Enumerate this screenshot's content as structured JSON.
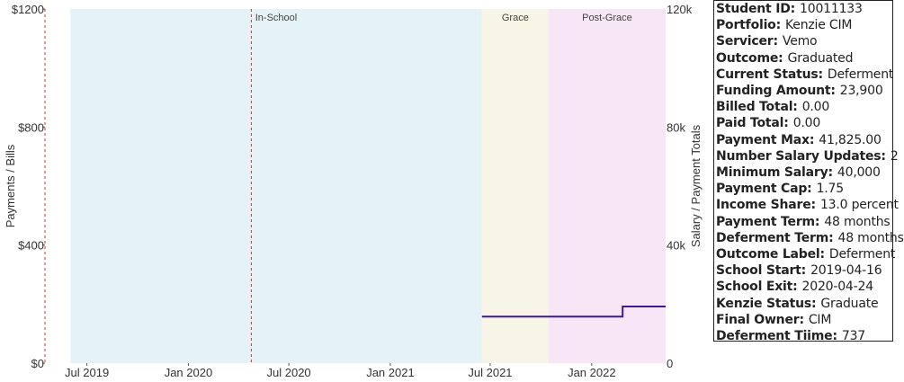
{
  "chart_data": {
    "type": "line",
    "xlabel": "",
    "ylabel_left": "Payments / Bills",
    "ylabel_right": "Salary / Payment Totals",
    "x_range": [
      "2019-04-16",
      "2022-05-15"
    ],
    "ylim_left": [
      0,
      1200
    ],
    "ylim_right": [
      0,
      120000
    ],
    "left_ticks": [
      "$0",
      "$400",
      "$800",
      "$1200"
    ],
    "left_tick_values": [
      0,
      400,
      800,
      1200
    ],
    "right_ticks": [
      "0",
      "40k",
      "80k",
      "120k"
    ],
    "right_tick_values": [
      0,
      40000,
      80000,
      120000
    ],
    "x_ticks": [
      "Jul 2019",
      "Jan 2020",
      "Jul 2020",
      "Jan 2021",
      "Jul 2021",
      "Jan 2022"
    ],
    "x_tick_dates": [
      "2019-07-01",
      "2020-01-01",
      "2020-07-01",
      "2021-01-01",
      "2021-07-01",
      "2022-01-01"
    ],
    "phases": [
      {
        "label": "In-School",
        "start": "2019-06-01",
        "end": "2021-06-16",
        "color": "#e5f3f8"
      },
      {
        "label": "Grace",
        "start": "2021-06-16",
        "end": "2021-10-15",
        "color": "#f7f5e6"
      },
      {
        "label": "Post-Grace",
        "start": "2021-10-15",
        "end": "2022-05-15",
        "color": "#f6e6f6"
      }
    ],
    "markers": [
      {
        "date": "2019-04-16",
        "color": "#c0392b"
      },
      {
        "date": "2020-04-24",
        "color": "#c0392b"
      }
    ],
    "series": [
      {
        "name": "",
        "axis": "right",
        "color": "#3d1a8f",
        "step": true,
        "x": [
          "2021-06-16",
          "2022-02-26",
          "2022-02-26",
          "2022-05-15"
        ],
        "values": [
          15750,
          15750,
          19200,
          19200
        ]
      }
    ],
    "grid": false,
    "legend": "none"
  },
  "info": [
    {
      "key": "Student ID:",
      "value": "10011133"
    },
    {
      "key": "Portfolio:",
      "value": "Kenzie CIM"
    },
    {
      "key": "Servicer:",
      "value": "Vemo"
    },
    {
      "key": "Outcome:",
      "value": "Graduated"
    },
    {
      "key": "Current Status:",
      "value": "Deferment"
    },
    {
      "key": "Funding Amount:",
      "value": "23,900"
    },
    {
      "key": "Billed Total:",
      "value": "0.00"
    },
    {
      "key": "Paid Total:",
      "value": "0.00"
    },
    {
      "key": "Payment Max:",
      "value": "41,825.00"
    },
    {
      "key": "Number Salary Updates:",
      "value": "2"
    },
    {
      "key": "Minimum Salary:",
      "value": "40,000"
    },
    {
      "key": "Payment Cap:",
      "value": "1.75"
    },
    {
      "key": "Income Share:",
      "value": "13.0 percent"
    },
    {
      "key": "Payment Term:",
      "value": "48 months"
    },
    {
      "key": "Deferment Term:",
      "value": "48 months"
    },
    {
      "key": "Outcome Label:",
      "value": "Deferment"
    },
    {
      "key": "School Start:",
      "value": "2019-04-16"
    },
    {
      "key": "School Exit:",
      "value": "2020-04-24"
    },
    {
      "key": "Kenzie Status:",
      "value": "Graduate"
    },
    {
      "key": "Final Owner:",
      "value": "CIM"
    },
    {
      "key": "Deferment Tiime:",
      "value": "737"
    }
  ]
}
